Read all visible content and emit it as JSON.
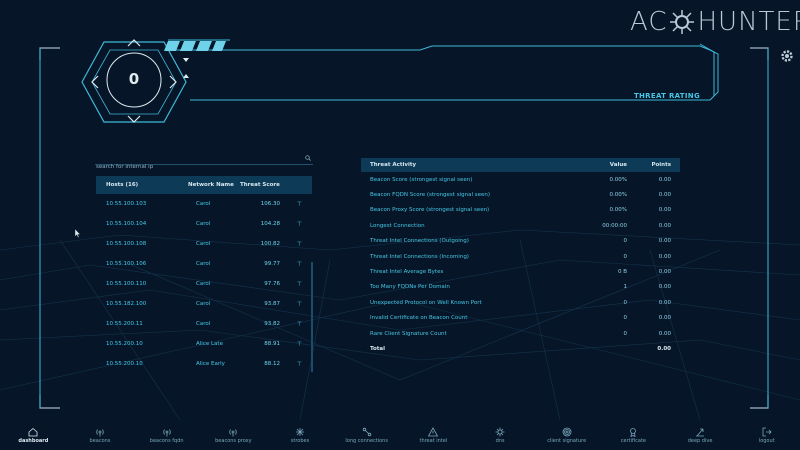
{
  "brand": {
    "part1": "AC",
    "part2": "HUNTER"
  },
  "header": {
    "threat_rating_label": "THREAT RATING",
    "score": "0"
  },
  "search": {
    "placeholder": "search for internal ip",
    "value": ""
  },
  "hosts_table": {
    "headers": {
      "host": "Hosts (16)",
      "network": "Network Name",
      "score": "Threat Score"
    },
    "rows": [
      {
        "host": "10.55.100.103",
        "network": "Carol",
        "score": "106.30",
        "flag": "⊤"
      },
      {
        "host": "10.55.100.104",
        "network": "Carol",
        "score": "104.28",
        "flag": "⊤"
      },
      {
        "host": "10.55.100.108",
        "network": "Carol",
        "score": "100.82",
        "flag": "⊤"
      },
      {
        "host": "10.55.100.106",
        "network": "Carol",
        "score": "99.77",
        "flag": "⊤"
      },
      {
        "host": "10.55.100.110",
        "network": "Carol",
        "score": "97.76",
        "flag": "⊤"
      },
      {
        "host": "10.55.182.100",
        "network": "Carol",
        "score": "93.87",
        "flag": "⊤"
      },
      {
        "host": "10.55.200.11",
        "network": "Carol",
        "score": "93.82",
        "flag": "⊤"
      },
      {
        "host": "10.55.200.10",
        "network": "Alice Late",
        "score": "88.91",
        "flag": "⊤"
      },
      {
        "host": "10.55.200.10",
        "network": "Alice Early",
        "score": "88.12",
        "flag": "⊤"
      }
    ]
  },
  "threat_table": {
    "headers": {
      "activity": "Threat Activity",
      "value": "Value",
      "points": "Points"
    },
    "rows": [
      {
        "activity": "Beacon Score (strongest signal seen)",
        "value": "0.00%",
        "points": "0.00"
      },
      {
        "activity": "Beacon FQDN Score (strongest signal seen)",
        "value": "0.00%",
        "points": "0.00"
      },
      {
        "activity": "Beacon Proxy Score (strongest signal seen)",
        "value": "0.00%",
        "points": "0.00"
      },
      {
        "activity": "Longest Connection",
        "value": "00:00:00",
        "points": "0.00"
      },
      {
        "activity": "Threat Intel Connections (Outgoing)",
        "value": "0",
        "points": "0.00"
      },
      {
        "activity": "Threat Intel Connections (Incoming)",
        "value": "0",
        "points": "0.00"
      },
      {
        "activity": "Threat Intel Average Bytes",
        "value": "0 B",
        "points": "0.00"
      },
      {
        "activity": "Too Many FQDNs Per Domain",
        "value": "1",
        "points": "0.00"
      },
      {
        "activity": "Unexpected Protocol on Well Known Port",
        "value": "0",
        "points": "0.00"
      },
      {
        "activity": "Invalid Certificate on Beacon Count",
        "value": "0",
        "points": "0.00"
      },
      {
        "activity": "Rare Client Signature Count",
        "value": "0",
        "points": "0.00"
      }
    ],
    "total_label": "Total",
    "total_points": "0.00"
  },
  "nav": [
    {
      "label": "dashboard",
      "icon": "home-icon",
      "active": true
    },
    {
      "label": "beacons",
      "icon": "beacon-icon"
    },
    {
      "label": "beacons fqdn",
      "icon": "beacon-fqdn-icon"
    },
    {
      "label": "beacons proxy",
      "icon": "beacon-proxy-icon"
    },
    {
      "label": "strobes",
      "icon": "strobe-icon"
    },
    {
      "label": "long connections",
      "icon": "long-connection-icon"
    },
    {
      "label": "threat intel",
      "icon": "warning-icon"
    },
    {
      "label": "dns",
      "icon": "dns-icon"
    },
    {
      "label": "client signature",
      "icon": "fingerprint-icon"
    },
    {
      "label": "certificate",
      "icon": "certificate-icon"
    },
    {
      "label": "deep dive",
      "icon": "deep-dive-icon"
    },
    {
      "label": "logout",
      "icon": "logout-icon"
    }
  ],
  "colors": {
    "background": "#061628",
    "accent": "#45c8e6",
    "header_row": "#0d3a56"
  }
}
